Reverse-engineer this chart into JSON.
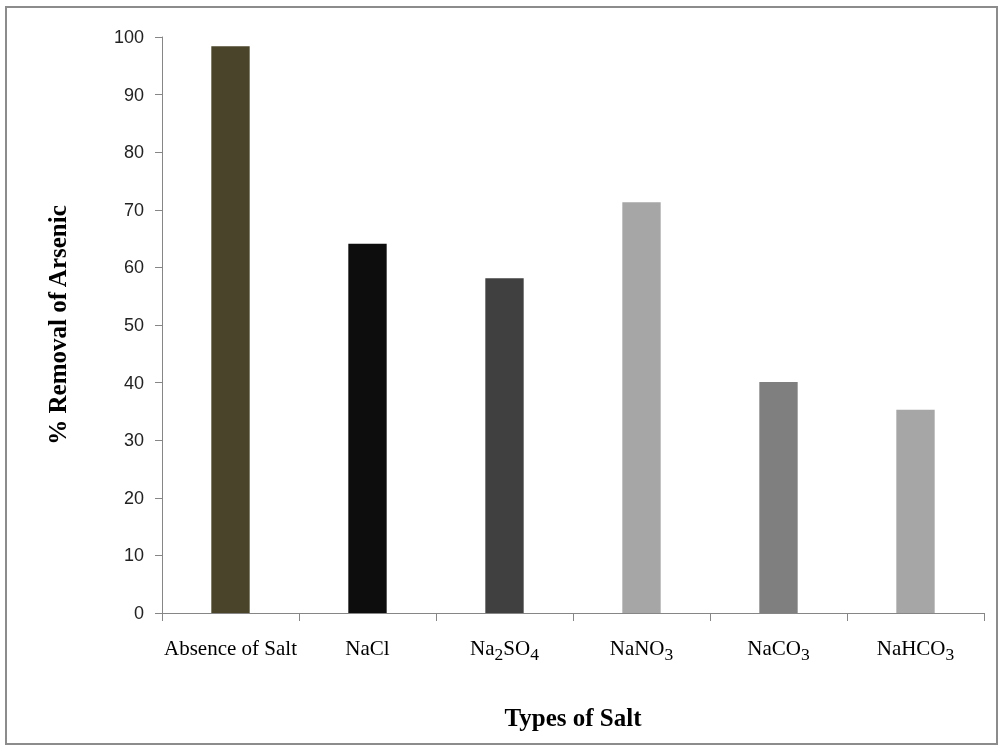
{
  "chart_data": {
    "type": "bar",
    "xlabel": "Types of Salt",
    "ylabel": "% Removal of Arsenic",
    "categories": [
      "Absence of Salt",
      "NaCl",
      "Na$_{2}$SO$_{4}$",
      "NaNO$_{3}$",
      "NaCO$_{3}$",
      "NaHCO$_{3}$"
    ],
    "values": [
      98.4,
      64.1,
      58.1,
      71.3,
      40.1,
      35.3
    ],
    "colors": [
      "#4a442a",
      "#0d0d0d",
      "#404040",
      "#a6a6a6",
      "#7f7f7f",
      "#a6a6a6"
    ],
    "ylim": [
      0,
      100
    ],
    "yticks": [
      0,
      10,
      20,
      30,
      40,
      50,
      60,
      70,
      80,
      90,
      100
    ]
  }
}
